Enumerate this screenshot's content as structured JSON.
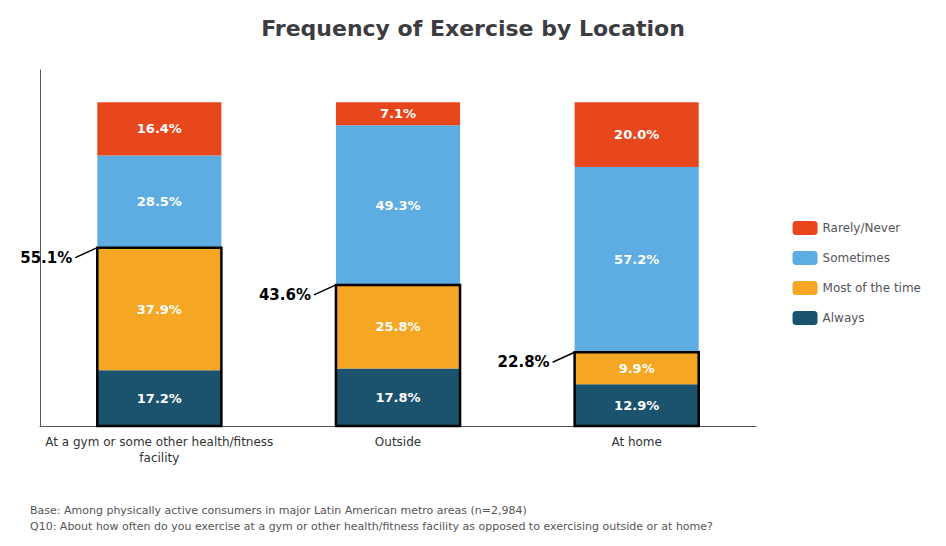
{
  "chart_data": {
    "type": "bar",
    "title": "Frequency of Exercise by Location",
    "categories": [
      "At a gym or some other health/fitness\nfacility",
      "Outside",
      "At home"
    ],
    "series": [
      {
        "name": "Always",
        "color": "#1b526e",
        "values": [
          17.2,
          17.8,
          12.9
        ],
        "value_labels": [
          "17.2%",
          "17.8%",
          "12.9%"
        ]
      },
      {
        "name": "Most of the time",
        "color": "#f5a623",
        "values": [
          37.9,
          25.8,
          9.9
        ],
        "value_labels": [
          "37.9%",
          "25.8%",
          "9.9%"
        ]
      },
      {
        "name": "Sometimes",
        "color": "#5dade2",
        "values": [
          28.5,
          49.3,
          57.2
        ],
        "value_labels": [
          "28.5%",
          "49.3%",
          "57.2%"
        ]
      },
      {
        "name": "Rarely/Never",
        "color": "#e8471e",
        "values": [
          16.4,
          7.1,
          20.0
        ],
        "value_labels": [
          "16.4%",
          "7.1%",
          "20.0%"
        ]
      }
    ],
    "annotations": [
      {
        "text": "55.1%",
        "value": 55.1
      },
      {
        "text": "43.6%",
        "value": 43.6
      },
      {
        "text": "22.8%",
        "value": 22.8
      }
    ],
    "footnotes": [
      "Base: Among physically active consumers in major Latin American metro areas (n=2,984)",
      "Q10: About how often do you exercise at a gym or other health/fitness facility as opposed to exercising outside or at home?"
    ],
    "ylim": [
      0,
      110
    ],
    "stacked": true,
    "data_labels": true,
    "tick_labels": "x",
    "grid": false,
    "legend": "right"
  }
}
